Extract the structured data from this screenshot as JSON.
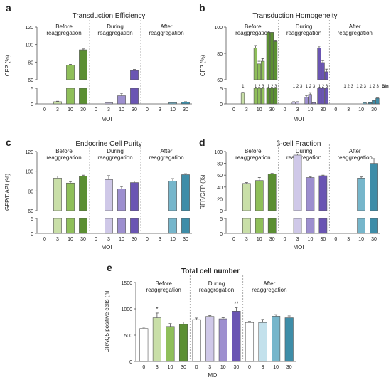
{
  "colors": {
    "before": [
      "#ffffff",
      "#c9dfa8",
      "#8fbf5a",
      "#5b8f32"
    ],
    "during": [
      "#ffffff",
      "#cfc8e8",
      "#9d8fcf",
      "#6a55b3"
    ],
    "after": [
      "#ffffff",
      "#c3e1ec",
      "#76b6cb",
      "#3e8da8"
    ],
    "axis": "#555555",
    "divider": "#999999"
  },
  "chart_data": [
    {
      "id": "a",
      "panel_letter": "a",
      "type": "bar",
      "title": "Transduction Efficiency",
      "ylabel": "CFP (%)",
      "xlabel": "MOI",
      "broken_axis": true,
      "ylim_lower": [
        0,
        5
      ],
      "ylim_upper": [
        60,
        120
      ],
      "yticks_lower": [
        "0",
        "5"
      ],
      "yticks_upper": [
        "60",
        "80",
        "100",
        "120"
      ],
      "groups": [
        "Before\nreaggregation",
        "During\nreaggregation",
        "After\nreaggregation"
      ],
      "categories": [
        "0",
        "3",
        "10",
        "30"
      ],
      "series": [
        {
          "values": [
            0,
            0.7,
            76.5,
            94
          ],
          "errors": [
            0,
            0.15,
            1,
            1
          ]
        },
        {
          "values": [
            0,
            0.4,
            2.6,
            70.5
          ],
          "errors": [
            0,
            0.1,
            0.8,
            1.2
          ]
        },
        {
          "values": [
            0,
            0,
            0.4,
            0.6
          ],
          "errors": [
            0,
            0,
            0.1,
            0.1
          ]
        }
      ]
    },
    {
      "id": "b",
      "panel_letter": "b",
      "type": "bar",
      "title": "Transduction Homogeneity",
      "ylabel": "CFP (%)",
      "xlabel": "MOI",
      "broken_axis": true,
      "ylim_lower": [
        0,
        5
      ],
      "ylim_upper": [
        60,
        100
      ],
      "yticks_lower": [
        "0",
        "5"
      ],
      "yticks_upper": [
        "60",
        "80",
        "100"
      ],
      "groups": [
        "Before\nreaggregation",
        "During\nreaggregation",
        "After\nreaggregation"
      ],
      "categories": [
        "0",
        "3",
        "10",
        "30"
      ],
      "bin_label": "Bin",
      "bin_digits": [
        "1",
        "2",
        "3"
      ],
      "series": [
        {
          "values": [
            [
              0,
              0,
              0
            ],
            [
              3.6,
              0,
              0
            ],
            [
              84,
              72,
              74
            ],
            [
              96,
              96,
              89
            ]
          ],
          "errors": [
            [
              0,
              0,
              0
            ],
            [
              0.1,
              0,
              0
            ],
            [
              2,
              2,
              2
            ],
            [
              1,
              1,
              1
            ]
          ]
        },
        {
          "values": [
            [
              0,
              0,
              0
            ],
            [
              0.6,
              0.6,
              0
            ],
            [
              2.1,
              3.0,
              0.4
            ],
            [
              84,
              73,
              66
            ]
          ],
          "errors": [
            [
              0,
              0,
              0
            ],
            [
              0.1,
              0.1,
              0
            ],
            [
              0.6,
              0.6,
              0.1
            ],
            [
              1.5,
              1.5,
              2
            ]
          ]
        },
        {
          "values": [
            [
              0,
              0,
              0
            ],
            [
              0,
              0,
              0
            ],
            [
              0,
              0,
              0.4
            ],
            [
              0.4,
              1.1,
              1.8
            ]
          ],
          "errors": [
            [
              0,
              0,
              0
            ],
            [
              0,
              0,
              0
            ],
            [
              0,
              0,
              0.1
            ],
            [
              0.1,
              0.1,
              0.1
            ]
          ]
        }
      ]
    },
    {
      "id": "c",
      "panel_letter": "c",
      "type": "bar",
      "title": "Endocrine Cell Purity",
      "ylabel": "GFP/DAPI (%)",
      "xlabel": "MOI",
      "broken_axis": true,
      "ylim_lower": [
        0,
        5
      ],
      "ylim_upper": [
        60,
        120
      ],
      "yticks_lower": [
        "0",
        "5"
      ],
      "yticks_upper": [
        "60",
        "80",
        "100",
        "120"
      ],
      "groups": [
        "Before\nreaggregation",
        "During\nreaggregation",
        "After\nreaggregation"
      ],
      "categories": [
        "0",
        "3",
        "10",
        "30"
      ],
      "series": [
        {
          "values": [
            null,
            93,
            88,
            95
          ],
          "errors": [
            0,
            2,
            1.5,
            1
          ]
        },
        {
          "values": [
            null,
            91.5,
            82,
            88.5
          ],
          "errors": [
            0,
            4,
            2.5,
            1.5
          ]
        },
        {
          "values": [
            null,
            null,
            90,
            96.5
          ],
          "errors": [
            0,
            0,
            2.5,
            1
          ]
        }
      ]
    },
    {
      "id": "d",
      "panel_letter": "d",
      "type": "bar",
      "title": "β-cell Fraction",
      "ylabel": "RFP/GFP (%)",
      "xlabel": "MOI",
      "broken_axis": true,
      "ylim_lower": [
        0,
        5
      ],
      "ylim_upper": [
        0,
        100
      ],
      "yticks_lower": [
        "0",
        "5"
      ],
      "yticks_upper": [
        "0",
        "20",
        "40",
        "60",
        "80",
        "100"
      ],
      "groups": [
        "Before\nreaggregation",
        "During\nreaggregation",
        "After\nreaggregation"
      ],
      "categories": [
        "0",
        "3",
        "10",
        "30"
      ],
      "series": [
        {
          "values": [
            null,
            46,
            51,
            62
          ],
          "errors": [
            0,
            1.5,
            5,
            1
          ]
        },
        {
          "values": [
            null,
            94,
            56,
            59
          ],
          "errors": [
            0,
            2,
            1,
            1
          ]
        },
        {
          "values": [
            null,
            null,
            55,
            80
          ],
          "errors": [
            0,
            0,
            2,
            8
          ]
        }
      ]
    },
    {
      "id": "e",
      "panel_letter": "e",
      "type": "bar",
      "title": "Total cell number",
      "ylabel": "DRAQ5 positive cells (n)",
      "xlabel": "MOI",
      "broken_axis": false,
      "ylim": [
        0,
        1500
      ],
      "yticks": [
        "0",
        "500",
        "1000",
        "1500"
      ],
      "groups": [
        "Before\nreaggregation",
        "During\nreaggregation",
        "After\nreaggregation"
      ],
      "categories": [
        "0",
        "3",
        "10",
        "30"
      ],
      "series": [
        {
          "values": [
            625,
            830,
            665,
            705
          ],
          "errors": [
            25,
            90,
            55,
            45
          ],
          "stars": [
            "",
            "*",
            "",
            ""
          ]
        },
        {
          "values": [
            795,
            855,
            810,
            955
          ],
          "errors": [
            30,
            15,
            20,
            65
          ],
          "stars": [
            "",
            "",
            "",
            "**"
          ]
        },
        {
          "values": [
            740,
            740,
            860,
            830
          ],
          "errors": [
            20,
            60,
            30,
            35
          ],
          "stars": [
            "",
            "",
            "",
            ""
          ]
        }
      ]
    }
  ]
}
